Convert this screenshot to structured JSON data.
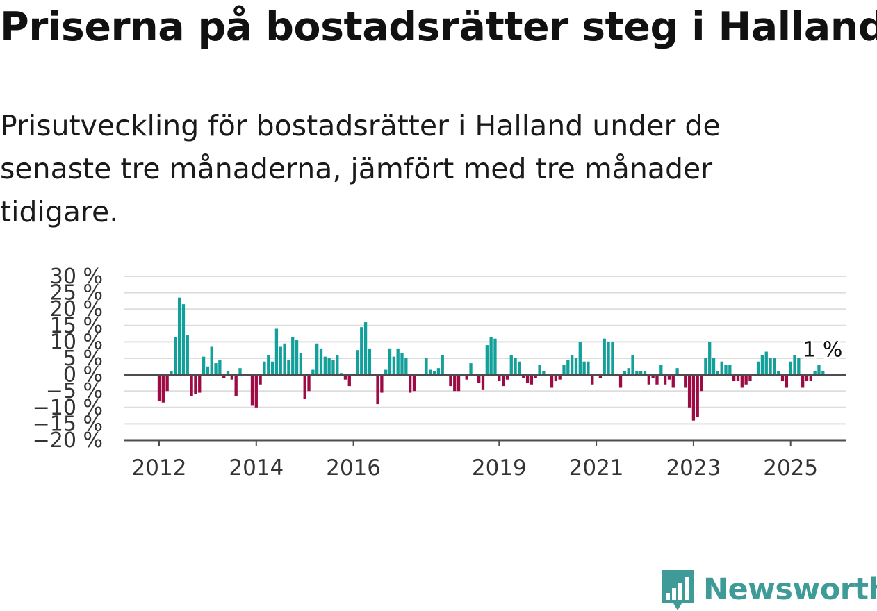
{
  "header": {
    "title": "Priserna på bostadsrätter steg i Halland",
    "subtitle": "Prisutveckling för bostadsrätter i Halland under de senaste tre månaderna, jämfört med tre månader tidigare."
  },
  "brand": {
    "name": "Newsworthy",
    "icon": "newsworthy-logo-icon"
  },
  "colors": {
    "positive": "#13a09a",
    "negative": "#9d0a44",
    "grid": "#dddddd",
    "axis": "#4d4d4d",
    "brand": "#3e9b98"
  },
  "chart_data": {
    "type": "bar",
    "title": "",
    "xlabel": "",
    "ylabel": "",
    "ylim": [
      -20,
      30
    ],
    "y_ticks": [
      30,
      25,
      20,
      15,
      10,
      5,
      0,
      -5,
      -10,
      -15,
      -20
    ],
    "y_tick_labels": [
      "30 %",
      "25 %",
      "20 %",
      "15 %",
      "10 %",
      "5 %",
      "0 %",
      "−5 %",
      "−10 %",
      "−15 %",
      "−20 %"
    ],
    "x_ticks": [
      "2012",
      "2014",
      "2016",
      "2019",
      "2021",
      "2023",
      "2025"
    ],
    "grid": true,
    "start": "2012-01",
    "frequency": "monthly",
    "end_label": "1 %",
    "values": [
      -8,
      -8.5,
      -5,
      1,
      11.5,
      23.5,
      21.5,
      12,
      -6.5,
      -6,
      -5.5,
      5.5,
      2.5,
      8.5,
      3.5,
      4.5,
      -1,
      1,
      -1.5,
      -6.5,
      2,
      0,
      -0.5,
      -9.5,
      -10,
      -3,
      4,
      6,
      4,
      14,
      8.5,
      9.5,
      4.5,
      11.5,
      10.5,
      6.5,
      -7.5,
      -5,
      1.5,
      9.5,
      8,
      5.5,
      5,
      4.5,
      6,
      0.5,
      -1.5,
      -3.5,
      0,
      7.5,
      14.5,
      16,
      8,
      -0.5,
      -9,
      -5.5,
      1.5,
      8,
      5.5,
      8,
      6.5,
      5,
      -5.5,
      -5,
      0,
      0,
      5,
      1.5,
      1,
      2,
      6,
      0,
      -3.5,
      -5,
      -5,
      0,
      -1.5,
      3.5,
      0,
      -2.5,
      -4.5,
      9,
      11.5,
      11,
      -2,
      -3.5,
      -1.5,
      6,
      5,
      4,
      -1,
      -2.5,
      -3,
      -1,
      3,
      1,
      0,
      -4,
      -2,
      -1.5,
      3,
      4.5,
      6,
      5,
      10,
      4,
      4,
      -3,
      0,
      -1,
      11,
      10,
      10,
      -0.5,
      -4,
      1,
      2,
      6,
      1,
      1,
      1,
      -3,
      -1,
      -3,
      3,
      -3,
      -1.5,
      -4,
      2,
      0,
      -4,
      -10,
      -14,
      -13,
      -5,
      5,
      10,
      5,
      1,
      4,
      3,
      3,
      -2,
      -2,
      -4,
      -3,
      -2,
      0,
      4,
      6,
      7,
      5,
      5,
      1,
      -2,
      -4,
      4,
      6,
      5,
      -4,
      -2,
      -2,
      1,
      3,
      1
    ]
  }
}
